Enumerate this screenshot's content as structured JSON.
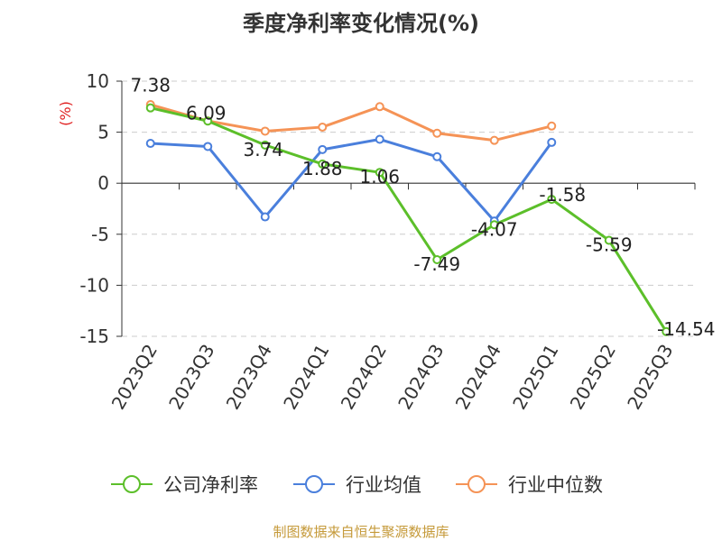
{
  "chart_data": {
    "type": "line",
    "title": "季度净利率变化情况(%)",
    "ylabel": "(%)",
    "xlabel": "",
    "ylim": [
      -15,
      10
    ],
    "yticks": [
      10,
      5,
      0,
      -5,
      -10,
      -15
    ],
    "grid": true,
    "legend_position": "bottom",
    "categories": [
      "2023Q2",
      "2023Q3",
      "2023Q4",
      "2024Q1",
      "2024Q2",
      "2024Q3",
      "2024Q4",
      "2025Q1",
      "2025Q2",
      "2025Q3"
    ],
    "series": [
      {
        "name": "公司净利率",
        "color": "#5cbf2a",
        "values": [
          7.38,
          6.09,
          3.74,
          1.88,
          1.06,
          -7.49,
          -4.07,
          -1.58,
          -5.59,
          -14.54
        ],
        "labels": [
          "7.38",
          "6.09",
          "3.74",
          "1.88",
          "1.06",
          "-7.49",
          "-4.07",
          "-1.58",
          "-5.59",
          "-14.54"
        ]
      },
      {
        "name": "行业均值",
        "color": "#4a7fdc",
        "values": [
          3.9,
          3.6,
          -3.3,
          3.3,
          4.3,
          2.6,
          -3.7,
          4.0,
          null,
          null
        ]
      },
      {
        "name": "行业中位数",
        "color": "#f59356",
        "values": [
          7.7,
          6.1,
          5.1,
          5.5,
          7.5,
          4.9,
          4.2,
          5.6,
          null,
          null
        ]
      }
    ]
  },
  "source": "制图数据来自恒生聚源数据库"
}
